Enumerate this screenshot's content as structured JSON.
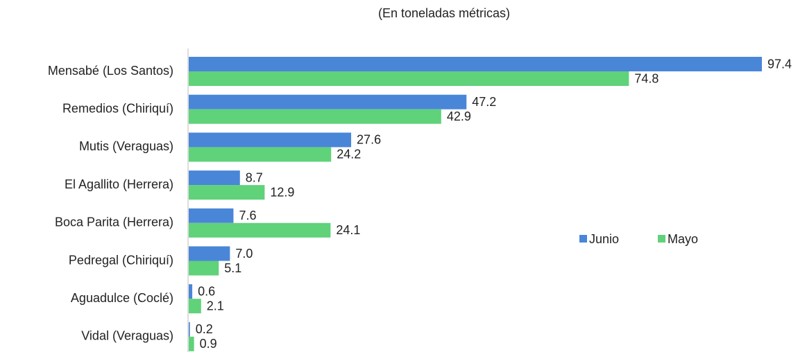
{
  "chart_data": {
    "type": "barh",
    "title": "(En toneladas métricas)",
    "categories": [
      "Mensabé (Los Santos)",
      "Remedios (Chiriquí)",
      "Mutis (Veraguas)",
      "El Agallito (Herrera)",
      "Boca Parita (Herrera)",
      "Pedregal (Chiriquí)",
      "Aguadulce (Coclé)",
      "Vidal (Veraguas)"
    ],
    "series": [
      {
        "name": "Junio",
        "color": "#4a86d8",
        "values": [
          97.4,
          47.2,
          27.6,
          8.7,
          7.6,
          7.0,
          0.6,
          0.2
        ],
        "value_labels": [
          "97.4",
          "47.2",
          "27.6",
          "8.7",
          "7.6",
          "7.0",
          "0.6",
          "0.2"
        ]
      },
      {
        "name": "Mayo",
        "color": "#5fd27a",
        "values": [
          74.8,
          42.9,
          24.2,
          12.9,
          24.1,
          5.1,
          2.1,
          0.9
        ],
        "value_labels": [
          "74.8",
          "42.9",
          "24.2",
          "12.9",
          "24.1",
          "5.1",
          "2.1",
          "0.9"
        ]
      }
    ]
  }
}
